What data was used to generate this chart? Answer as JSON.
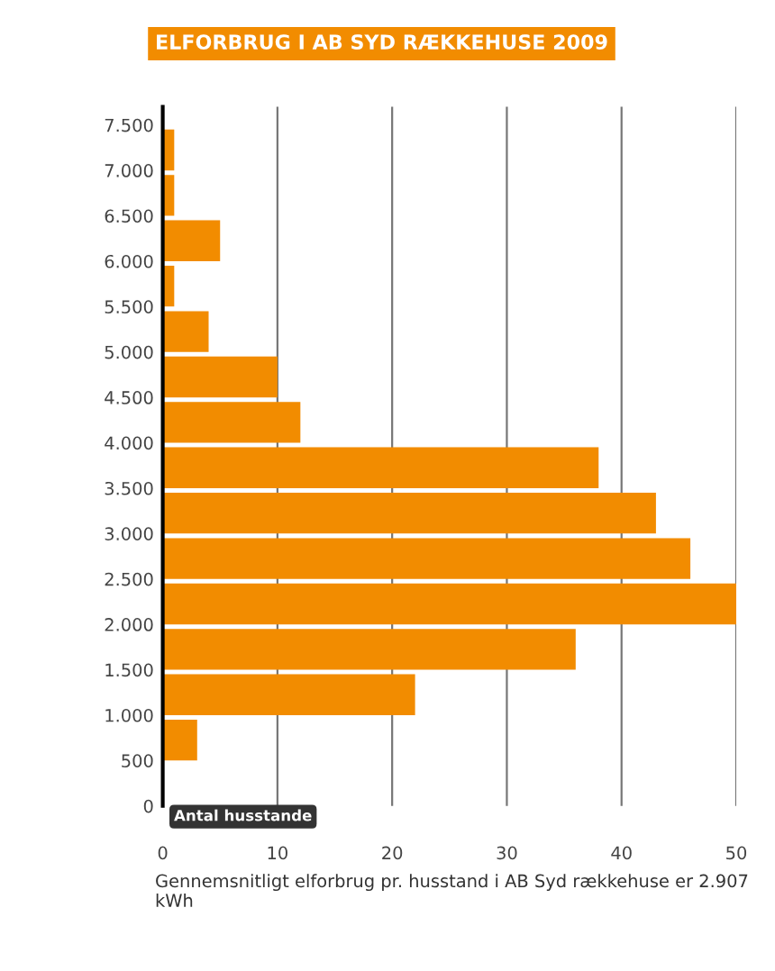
{
  "chart_data": {
    "type": "histogram",
    "orientation": "horizontal",
    "title": "ELFORBRUG I AB SYD RÆKKEHUSE 2009",
    "xlabel": "Antal husstande",
    "bins": [
      0,
      500,
      1000,
      1500,
      2000,
      2500,
      3000,
      3500,
      4000,
      4500,
      5000,
      5500,
      6000,
      6500,
      7000,
      7500
    ],
    "values": [
      0,
      3,
      22,
      36,
      50,
      46,
      43,
      38,
      12,
      10,
      4,
      1,
      5,
      1,
      1
    ],
    "color": "#f28c00",
    "xlim": [
      0,
      50
    ],
    "xticks": [
      0,
      10,
      20,
      30,
      40,
      50
    ],
    "ylim": [
      0,
      7700
    ],
    "yticks": [
      {
        "value": 0,
        "label": "0"
      },
      {
        "value": 500,
        "label": "500"
      },
      {
        "value": 1000,
        "label": "1.000"
      },
      {
        "value": 1500,
        "label": "1.500"
      },
      {
        "value": 2000,
        "label": "2.000"
      },
      {
        "value": 2500,
        "label": "2.500"
      },
      {
        "value": 3000,
        "label": "3.000"
      },
      {
        "value": 3500,
        "label": "3.500"
      },
      {
        "value": 4000,
        "label": "4.000"
      },
      {
        "value": 4500,
        "label": "4.500"
      },
      {
        "value": 5000,
        "label": "5.000"
      },
      {
        "value": 5500,
        "label": "5.500"
      },
      {
        "value": 6000,
        "label": "6.000"
      },
      {
        "value": 6500,
        "label": "6.500"
      },
      {
        "value": 7000,
        "label": "7.000"
      },
      {
        "value": 7500,
        "label": "7.500"
      }
    ],
    "grid": "x",
    "annotations": [
      "Gennemsnitligt elforbrug pr. husstand i AB Syd rækkehuse er 2.907 kWh"
    ]
  }
}
